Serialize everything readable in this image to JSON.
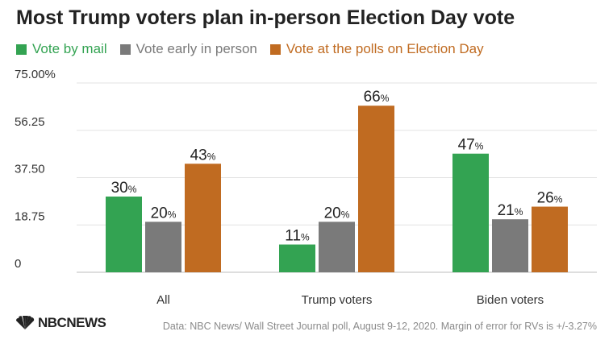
{
  "chart_data": {
    "type": "bar",
    "title": "Most Trump voters plan in-person Election Day vote",
    "categories": [
      "All",
      "Trump voters",
      "Biden voters"
    ],
    "series": [
      {
        "name": "Vote by mail",
        "color": "#33a352",
        "values": [
          30,
          11,
          47
        ]
      },
      {
        "name": "Vote early in person",
        "color": "#7a7a7a",
        "values": [
          20,
          20,
          21
        ]
      },
      {
        "name": "Vote at the polls on Election Day",
        "color": "#c06b21",
        "values": [
          43,
          66,
          26
        ]
      }
    ],
    "value_suffix": "%",
    "ylim": [
      0,
      75
    ],
    "yticks": [
      "0",
      "18.75",
      "37.50",
      "56.25",
      "75.00%"
    ],
    "ytick_values": [
      0,
      18.75,
      37.5,
      56.25,
      75
    ],
    "grid": true,
    "legend_position": "top-left",
    "xlabel": "",
    "ylabel": ""
  },
  "footer": {
    "logo_text": "NBCNEWS",
    "source": "Data: NBC News/ Wall Street Journal poll, August 9-12, 2020. Margin of error for RVs is +/-3.27%"
  }
}
